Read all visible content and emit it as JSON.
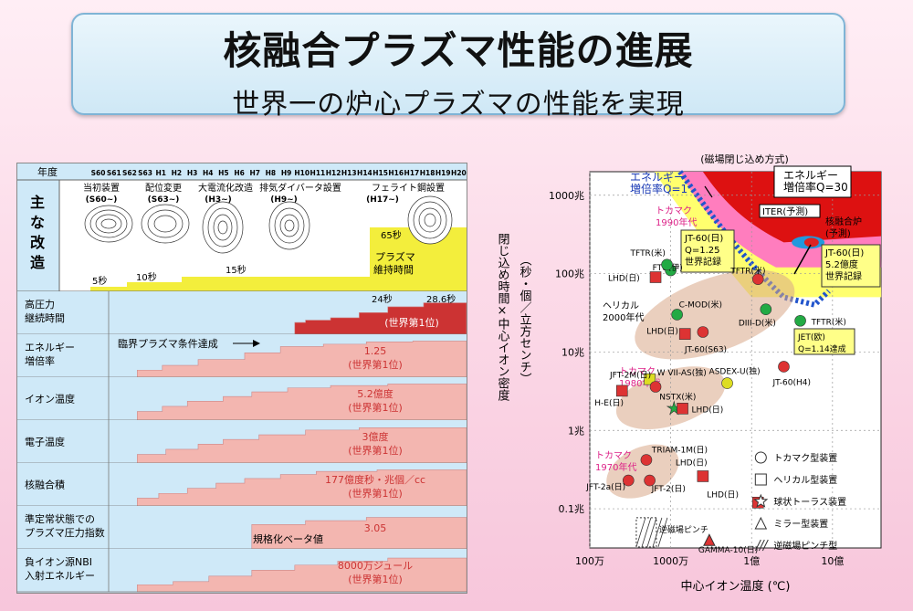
{
  "header": {
    "title": "核融合プラズマ性能の進展",
    "subtitle": "世界一の炉心プラズマの性能を実現"
  },
  "left_panel": {
    "year_header": "年度",
    "years": [
      "S60",
      "S61",
      "S62",
      "S63",
      "H1",
      "H2",
      "H3",
      "H4",
      "H5",
      "H6",
      "H7",
      "H8",
      "H9",
      "H10",
      "H11",
      "H12",
      "H13",
      "H14",
      "H15",
      "H16",
      "H17",
      "H18",
      "H19",
      "H20"
    ],
    "improvements_label": "主な改造",
    "improvements": [
      {
        "label": "当初装置",
        "sub": "(S60~)"
      },
      {
        "label": "配位変更",
        "sub": "(S63~)"
      },
      {
        "label": "大電流化改造",
        "sub": "(H3~)"
      },
      {
        "label": "排気ダイバータ設置",
        "sub": "(H9~)"
      },
      {
        "label": "フェライト鋼設置",
        "sub": "(H17~)"
      }
    ],
    "duration_labels": [
      "5秒",
      "10秒",
      "15秒",
      "65秒"
    ],
    "duration_caption": "プラズマ\n維持時間",
    "rows": [
      {
        "label": "高圧力\n継続時間",
        "value_a": "24秒",
        "value_b": "28.6秒",
        "value_c": "(世界第1位)"
      },
      {
        "label": "エネルギー\n増倍率",
        "note": "臨界プラズマ条件達成",
        "value": "1.25",
        "rank": "(世界第1位)"
      },
      {
        "label": "イオン温度",
        "value": "5.2億度",
        "rank": "(世界第1位)"
      },
      {
        "label": "電子温度",
        "value": "3億度",
        "rank": "(世界第1位)"
      },
      {
        "label": "核融合積",
        "value": "177億度秒・兆個／cc",
        "rank": "(世界第1位)"
      },
      {
        "label": "準定常状態での\nプラズマ圧力指数",
        "note": "規格化ベータ値",
        "value": "3.05"
      },
      {
        "label": "負イオン源NBI\n入射エネルギー",
        "value": "8000万ジュール",
        "rank": "(世界第1位)"
      }
    ]
  },
  "chart_data": {
    "type": "scatter",
    "title": "(磁場閉じ込め方式)",
    "xlabel": "中心イオン温度 (℃)",
    "ylabel": "閉じ込め時間×中心イオン密度",
    "ylabel_unit": "（秒・個／立方センチ）",
    "x_scale": "log",
    "y_scale": "log",
    "xticks": [
      "100万",
      "1000万",
      "1億",
      "10億"
    ],
    "yticks": [
      "1000兆",
      "100兆",
      "10兆",
      "1兆",
      "0.1兆"
    ],
    "regions": [
      "エネルギー増倍率Q=1",
      "エネルギー増倍率Q=30",
      "トカマク 1990年代",
      "トカマク 1980年代",
      "トカマク 1970年代",
      "ヘリカル 2000年代"
    ],
    "annotations": [
      {
        "text": "エネルギー",
        "text2": "増倍率Q=1"
      },
      {
        "text": "エネルギー",
        "text2": "増倍率Q=30"
      },
      {
        "text": "ITER(予測)"
      },
      {
        "text": "核融合炉",
        "text2": "(予測)"
      },
      {
        "text": "JT-60(日)",
        "text2": "Q=1.25",
        "text3": "世界記録"
      },
      {
        "text": "JT-60(日)",
        "text2": "5.2億度",
        "text3": "世界記録"
      },
      {
        "text": "JET(欧)",
        "text2": "Q=1.14達成"
      },
      {
        "text": "トカマク",
        "text2": "1990年代"
      },
      {
        "text": "トカマク",
        "text2": "1980年代"
      },
      {
        "text": "トカマク",
        "text2": "1970年代"
      },
      {
        "text": "ヘリカル",
        "text2": "2000年代"
      }
    ],
    "points": [
      {
        "label": "TFTR(米)",
        "x": 120000000.0,
        "y": 85000000000000.0,
        "type": "tokamak",
        "color": "#dd3333"
      },
      {
        "label": "TFTR(米)",
        "x": 400000000.0,
        "y": 25000000000000.0,
        "type": "tokamak",
        "color": "#22aa44"
      },
      {
        "label": "JT-60(H4)",
        "x": 250000000.0,
        "y": 6500000000000.0,
        "type": "tokamak",
        "color": "#dd3333"
      },
      {
        "label": "DIII-D(米)",
        "x": 150000000.0,
        "y": 35000000000000.0,
        "type": "tokamak",
        "color": "#22aa44"
      },
      {
        "label": "C-MOD(米)",
        "x": 12000000.0,
        "y": 30000000000000.0,
        "type": "tokamak",
        "color": "#22aa44"
      },
      {
        "label": "JT-60(S63)",
        "x": 25000000.0,
        "y": 18000000000000.0,
        "type": "tokamak",
        "color": "#dd3333"
      },
      {
        "label": "FTU(伊)",
        "x": 10000000.0,
        "y": 110000000000000.0,
        "type": "tokamak",
        "color": "#22aa44"
      },
      {
        "label": "TFTR(米)",
        "x": 9000000.0,
        "y": 130000000000000.0,
        "type": "tokamak",
        "color": "#22aa44"
      },
      {
        "label": "LHD(日)",
        "x": 6500000.0,
        "y": 90000000000000.0,
        "type": "helical",
        "color": "#dd3333"
      },
      {
        "label": "LHD(日)",
        "x": 15000000.0,
        "y": 17000000000000.0,
        "type": "helical",
        "color": "#dd3333"
      },
      {
        "label": "ASDEX-U(独)",
        "x": 50000000.0,
        "y": 4000000000000.0,
        "type": "tokamak",
        "color": "#dddd22"
      },
      {
        "label": "W VII-AS(独)",
        "x": 5500000.0,
        "y": 4500000000000.0,
        "type": "helical",
        "color": "#dddd22"
      },
      {
        "label": "JFT-2M(日)",
        "x": 6500000.0,
        "y": 3600000000000.0,
        "type": "tokamak",
        "color": "#dd3333"
      },
      {
        "label": "H-E(日)",
        "x": 2500000.0,
        "y": 3200000000000.0,
        "type": "helical",
        "color": "#dd3333"
      },
      {
        "label": "NSTX(米)",
        "x": 11000000.0,
        "y": 1900000000000.0,
        "type": "spherical_torus",
        "color": "#22aa44"
      },
      {
        "label": "LHD(日)",
        "x": 14000000.0,
        "y": 1900000000000.0,
        "type": "helical",
        "color": "#dd3333"
      },
      {
        "label": "TRIAM-1M(日)",
        "x": 5000000.0,
        "y": 420000000000.0,
        "type": "tokamak",
        "color": "#dd3333"
      },
      {
        "label": "JFT-2a(日)",
        "x": 3000000.0,
        "y": 230000000000.0,
        "type": "tokamak",
        "color": "#dd3333"
      },
      {
        "label": "JFT-2(日)",
        "x": 5500000.0,
        "y": 230000000000.0,
        "type": "tokamak",
        "color": "#dd3333"
      },
      {
        "label": "LHD(日)",
        "x": 25000000.0,
        "y": 260000000000.0,
        "type": "helical",
        "color": "#dd3333"
      },
      {
        "label": "LHD(日)",
        "x": 120000000.0,
        "y": 120000000000.0,
        "type": "helical",
        "color": "#dd3333"
      },
      {
        "label": "GAMMA-10(日)",
        "x": 30000000.0,
        "y": 40000000000.0,
        "type": "mirror",
        "color": "#dd3333"
      },
      {
        "label": "逆磁場ピンチ",
        "x": 5000000.0,
        "y": 50000000000.0,
        "type": "rfp",
        "color": "#ffffff"
      }
    ],
    "legend": [
      "トカマク型装置",
      "ヘリカル型装置",
      "球状トーラス装置",
      "ミラー型装置",
      "逆磁場ピンチ型"
    ],
    "legend_position": "bottom-right"
  }
}
